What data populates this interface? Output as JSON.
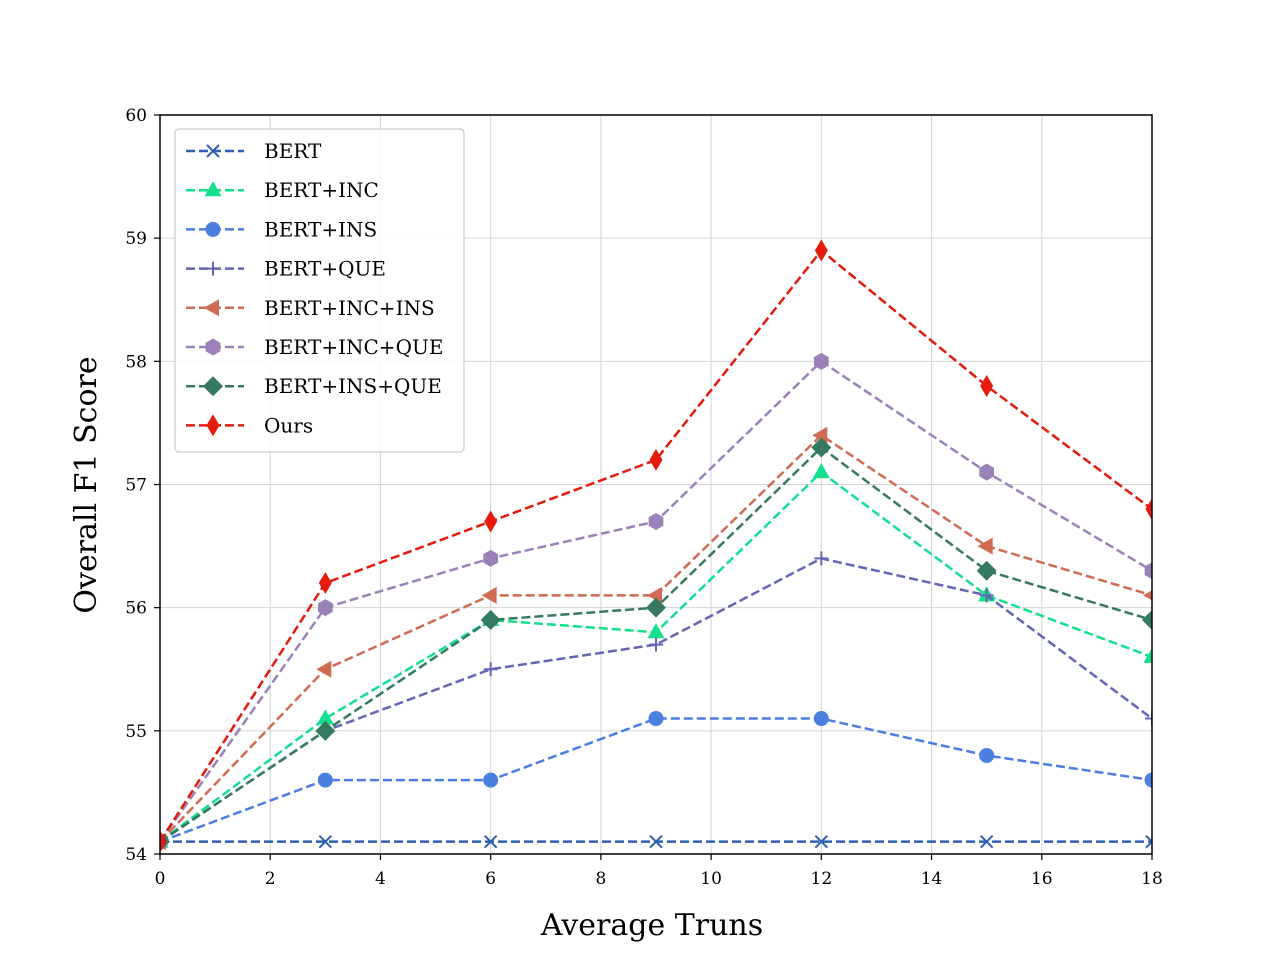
{
  "chart_data": {
    "type": "line",
    "title": "",
    "xlabel": "Average Truns",
    "ylabel": "Overall F1 Score",
    "xlim": [
      0,
      18
    ],
    "ylim": [
      54,
      60
    ],
    "xticks": [
      0,
      2,
      4,
      6,
      8,
      10,
      12,
      14,
      16,
      18
    ],
    "yticks": [
      54,
      55,
      56,
      57,
      58,
      59,
      60
    ],
    "grid": true,
    "legend_position": "top-left",
    "x": [
      0,
      3,
      6,
      9,
      12,
      15,
      18
    ],
    "series": [
      {
        "name": "BERT",
        "color": "#2e60b0",
        "marker": "x",
        "values": [
          54.1,
          54.1,
          54.1,
          54.1,
          54.1,
          54.1,
          54.1
        ]
      },
      {
        "name": "BERT+INC",
        "color": "#12e08d",
        "marker": "triangle",
        "values": [
          54.1,
          55.1,
          55.9,
          55.8,
          57.1,
          56.1,
          55.6
        ]
      },
      {
        "name": "BERT+INS",
        "color": "#4a7fe0",
        "marker": "circle",
        "values": [
          54.1,
          54.6,
          54.6,
          55.1,
          55.1,
          54.8,
          54.6
        ]
      },
      {
        "name": "BERT+QUE",
        "color": "#6466b4",
        "marker": "plus",
        "values": [
          54.1,
          55.0,
          55.5,
          55.7,
          56.4,
          56.1,
          55.1
        ]
      },
      {
        "name": "BERT+INC+INS",
        "color": "#cf6b53",
        "marker": "triangle-left",
        "values": [
          54.1,
          55.5,
          56.1,
          56.1,
          57.4,
          56.5,
          56.1
        ]
      },
      {
        "name": "BERT+INC+QUE",
        "color": "#9a82b8",
        "marker": "hexagon",
        "values": [
          54.1,
          56.0,
          56.4,
          56.7,
          58.0,
          57.1,
          56.3
        ]
      },
      {
        "name": "BERT+INS+QUE",
        "color": "#357a60",
        "marker": "diamond",
        "values": [
          54.1,
          55.0,
          55.9,
          56.0,
          57.3,
          56.3,
          55.9
        ]
      },
      {
        "name": "Ours",
        "color": "#e31a0c",
        "marker": "thin-diamond",
        "values": [
          54.1,
          56.2,
          56.7,
          57.2,
          58.9,
          57.8,
          56.8
        ]
      }
    ]
  }
}
